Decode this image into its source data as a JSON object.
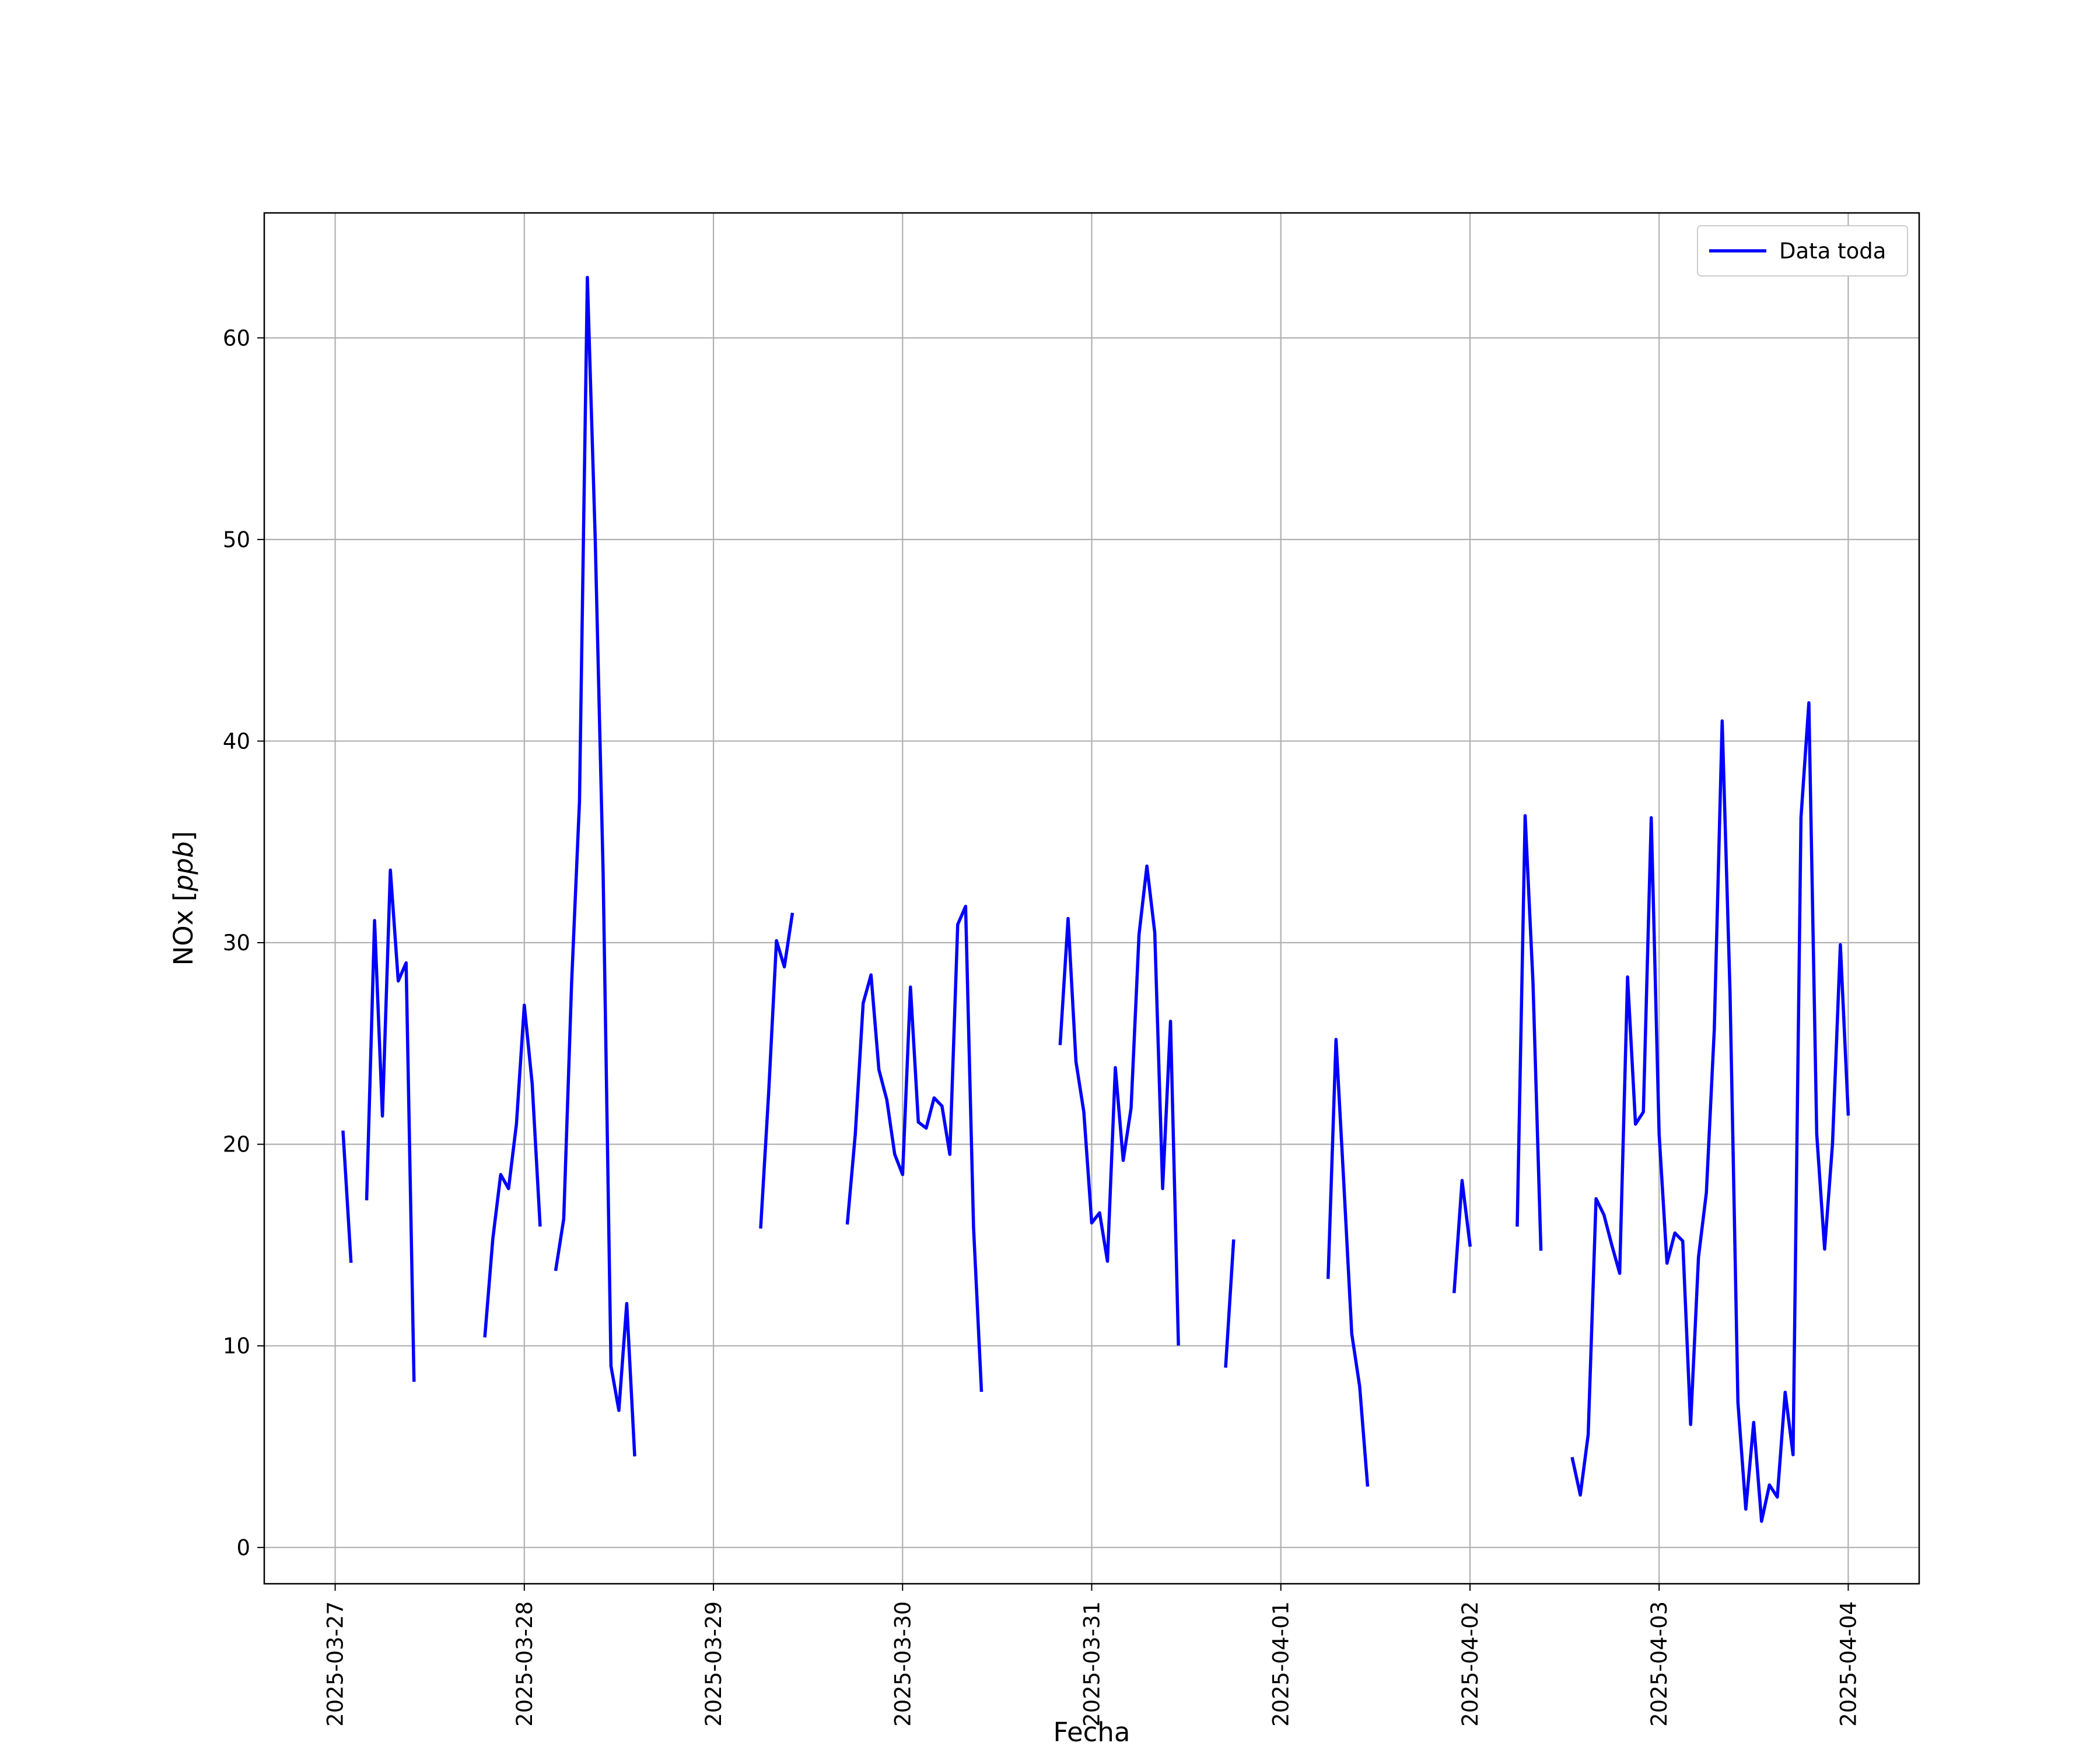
{
  "chart_data": {
    "type": "line",
    "xlabel": "Fecha",
    "ylabel": "NOx [ppb]",
    "ylabel_main": "NOx [",
    "ylabel_unit": "ppb",
    "ylabel_close": "]",
    "xlim": [
      "2025-03-26 15:00",
      "2025-04-04 09:00"
    ],
    "ylim": [
      -1.8,
      66.2
    ],
    "x_ticks": [
      "2025-03-27",
      "2025-03-28",
      "2025-03-29",
      "2025-03-30",
      "2025-03-31",
      "2025-04-01",
      "2025-04-02",
      "2025-04-03",
      "2025-04-04"
    ],
    "y_ticks": [
      0,
      10,
      20,
      30,
      40,
      50,
      60
    ],
    "grid": true,
    "legend_position": "top-right",
    "series_color": "#0000ff",
    "series": [
      {
        "name": "Data toda",
        "segments": [
          [
            [
              "2025-03-27 01:00",
              20.6
            ],
            [
              "2025-03-27 02:00",
              14.2
            ]
          ],
          [
            [
              "2025-03-27 04:00",
              17.3
            ],
            [
              "2025-03-27 05:00",
              31.1
            ],
            [
              "2025-03-27 06:00",
              21.4
            ],
            [
              "2025-03-27 07:00",
              33.6
            ],
            [
              "2025-03-27 08:00",
              28.1
            ],
            [
              "2025-03-27 09:00",
              29.0
            ],
            [
              "2025-03-27 10:00",
              8.3
            ]
          ],
          [
            [
              "2025-03-27 19:00",
              10.5
            ],
            [
              "2025-03-27 20:00",
              15.3
            ],
            [
              "2025-03-27 21:00",
              18.5
            ],
            [
              "2025-03-27 22:00",
              17.8
            ],
            [
              "2025-03-27 23:00",
              21.0
            ],
            [
              "2025-03-28 00:00",
              26.9
            ],
            [
              "2025-03-28 01:00",
              23.0
            ],
            [
              "2025-03-28 02:00",
              16.0
            ]
          ],
          [
            [
              "2025-03-28 04:00",
              13.8
            ],
            [
              "2025-03-28 05:00",
              16.3
            ],
            [
              "2025-03-28 06:00",
              28.0
            ],
            [
              "2025-03-28 07:00",
              37.0
            ],
            [
              "2025-03-28 08:00",
              63.0
            ],
            [
              "2025-03-28 09:00",
              50.0
            ],
            [
              "2025-03-28 10:00",
              33.5
            ],
            [
              "2025-03-28 11:00",
              9.0
            ],
            [
              "2025-03-28 12:00",
              6.8
            ],
            [
              "2025-03-28 13:00",
              12.1
            ],
            [
              "2025-03-28 14:00",
              4.6
            ]
          ],
          [
            [
              "2025-03-29 06:00",
              15.9
            ],
            [
              "2025-03-29 07:00",
              22.5
            ],
            [
              "2025-03-29 08:00",
              30.1
            ],
            [
              "2025-03-29 09:00",
              28.8
            ],
            [
              "2025-03-29 10:00",
              31.4
            ]
          ],
          [
            [
              "2025-03-29 17:00",
              16.1
            ],
            [
              "2025-03-29 18:00",
              20.5
            ],
            [
              "2025-03-29 19:00",
              27.0
            ],
            [
              "2025-03-29 20:00",
              28.4
            ],
            [
              "2025-03-29 21:00",
              23.7
            ],
            [
              "2025-03-29 22:00",
              22.2
            ],
            [
              "2025-03-29 23:00",
              19.5
            ],
            [
              "2025-03-30 00:00",
              18.5
            ],
            [
              "2025-03-30 01:00",
              27.8
            ],
            [
              "2025-03-30 02:00",
              21.1
            ],
            [
              "2025-03-30 03:00",
              20.8
            ],
            [
              "2025-03-30 04:00",
              22.3
            ],
            [
              "2025-03-30 05:00",
              21.9
            ],
            [
              "2025-03-30 06:00",
              19.5
            ],
            [
              "2025-03-30 07:00",
              30.9
            ],
            [
              "2025-03-30 08:00",
              31.8
            ],
            [
              "2025-03-30 09:00",
              15.9
            ],
            [
              "2025-03-30 10:00",
              7.8
            ]
          ],
          [
            [
              "2025-03-30 20:00",
              25.0
            ],
            [
              "2025-03-30 21:00",
              31.2
            ],
            [
              "2025-03-30 22:00",
              24.1
            ],
            [
              "2025-03-30 23:00",
              21.6
            ],
            [
              "2025-03-31 00:00",
              16.1
            ],
            [
              "2025-03-31 01:00",
              16.6
            ],
            [
              "2025-03-31 02:00",
              14.2
            ],
            [
              "2025-03-31 03:00",
              23.8
            ],
            [
              "2025-03-31 04:00",
              19.2
            ],
            [
              "2025-03-31 05:00",
              21.8
            ],
            [
              "2025-03-31 06:00",
              30.4
            ],
            [
              "2025-03-31 07:00",
              33.8
            ],
            [
              "2025-03-31 08:00",
              30.5
            ],
            [
              "2025-03-31 09:00",
              17.8
            ],
            [
              "2025-03-31 10:00",
              26.1
            ],
            [
              "2025-03-31 11:00",
              10.1
            ]
          ],
          [
            [
              "2025-03-31 17:00",
              9.0
            ],
            [
              "2025-03-31 18:00",
              15.2
            ]
          ],
          [
            [
              "2025-04-01 06:00",
              13.4
            ],
            [
              "2025-04-01 07:00",
              25.2
            ],
            [
              "2025-04-01 08:00",
              18.0
            ],
            [
              "2025-04-01 09:00",
              10.6
            ],
            [
              "2025-04-01 10:00",
              8.0
            ],
            [
              "2025-04-01 11:00",
              3.1
            ]
          ],
          [
            [
              "2025-04-01 22:00",
              12.7
            ],
            [
              "2025-04-01 23:00",
              18.2
            ],
            [
              "2025-04-02 00:00",
              15.0
            ]
          ],
          [
            [
              "2025-04-02 06:00",
              16.0
            ],
            [
              "2025-04-02 07:00",
              36.3
            ],
            [
              "2025-04-02 08:00",
              28.0
            ],
            [
              "2025-04-02 09:00",
              14.8
            ]
          ],
          [
            [
              "2025-04-02 13:00",
              4.4
            ],
            [
              "2025-04-02 14:00",
              2.6
            ],
            [
              "2025-04-02 15:00",
              5.6
            ],
            [
              "2025-04-02 16:00",
              17.3
            ],
            [
              "2025-04-02 17:00",
              16.5
            ],
            [
              "2025-04-02 18:00",
              15.0
            ],
            [
              "2025-04-02 19:00",
              13.6
            ],
            [
              "2025-04-02 20:00",
              28.3
            ],
            [
              "2025-04-02 21:00",
              21.0
            ],
            [
              "2025-04-02 22:00",
              21.6
            ],
            [
              "2025-04-02 23:00",
              36.2
            ],
            [
              "2025-04-03 00:00",
              20.5
            ],
            [
              "2025-04-03 01:00",
              14.1
            ],
            [
              "2025-04-03 02:00",
              15.6
            ],
            [
              "2025-04-03 03:00",
              15.2
            ],
            [
              "2025-04-03 04:00",
              6.1
            ],
            [
              "2025-04-03 05:00",
              14.4
            ],
            [
              "2025-04-03 06:00",
              17.6
            ],
            [
              "2025-04-03 07:00",
              25.7
            ],
            [
              "2025-04-03 08:00",
              41.0
            ],
            [
              "2025-04-03 09:00",
              27.5
            ],
            [
              "2025-04-03 10:00",
              7.2
            ],
            [
              "2025-04-03 11:00",
              1.9
            ],
            [
              "2025-04-03 12:00",
              6.2
            ],
            [
              "2025-04-03 13:00",
              1.3
            ],
            [
              "2025-04-03 14:00",
              3.1
            ],
            [
              "2025-04-03 15:00",
              2.5
            ],
            [
              "2025-04-03 16:00",
              7.7
            ],
            [
              "2025-04-03 17:00",
              4.6
            ],
            [
              "2025-04-03 18:00",
              36.2
            ],
            [
              "2025-04-03 19:00",
              41.9
            ],
            [
              "2025-04-03 20:00",
              20.5
            ],
            [
              "2025-04-03 21:00",
              14.8
            ],
            [
              "2025-04-03 22:00",
              20.0
            ],
            [
              "2025-04-03 23:00",
              29.9
            ],
            [
              "2025-04-04 00:00",
              21.5
            ]
          ]
        ]
      }
    ]
  }
}
